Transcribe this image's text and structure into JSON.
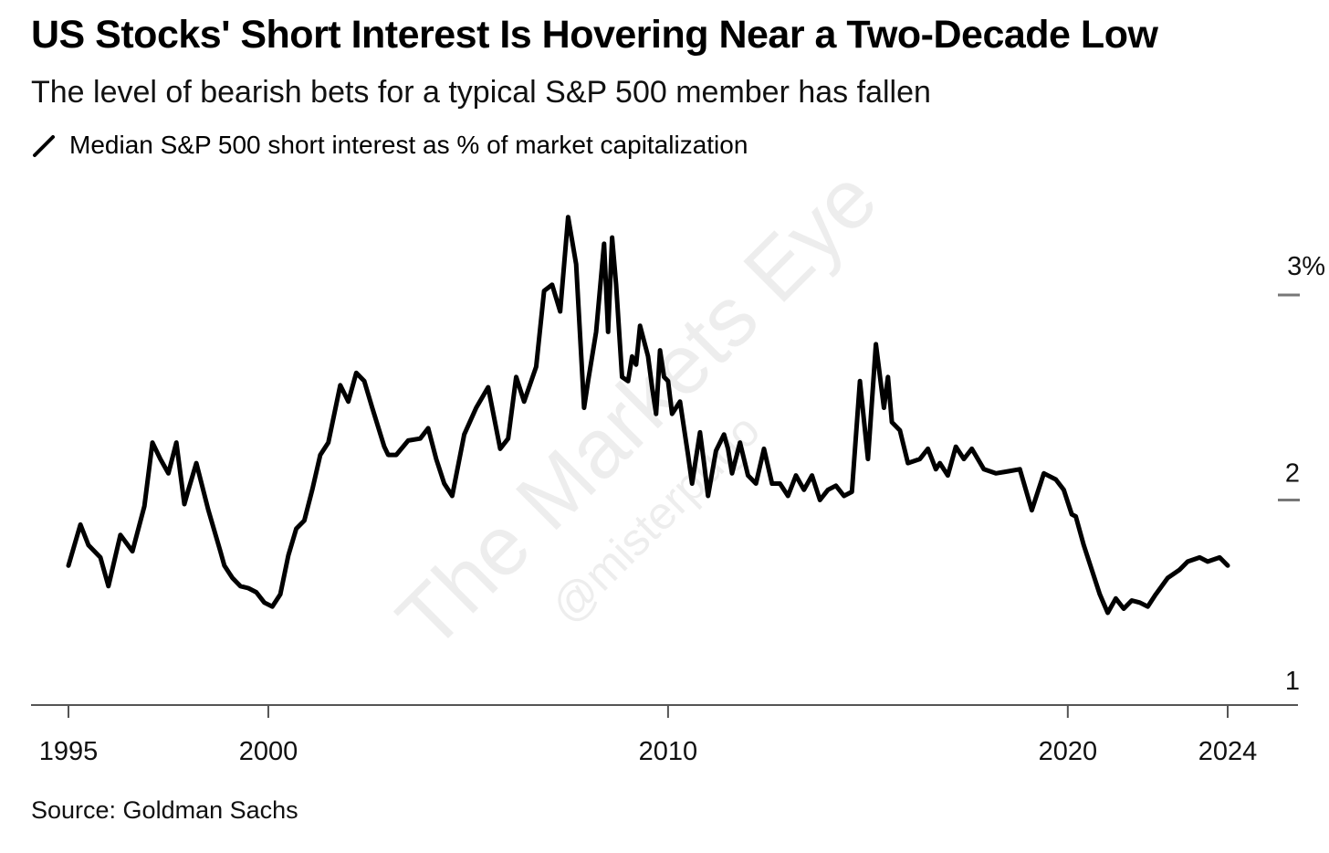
{
  "header": {
    "title": "US Stocks' Short Interest Is Hovering Near a Two-Decade Low",
    "subtitle": "The level of bearish bets for a typical S&P 500 member has fallen"
  },
  "legend": {
    "label": "Median S&P 500 short interest as % of market capitalization",
    "color": "#000000"
  },
  "watermark": {
    "line1": "The Markets Eye",
    "line2": "@misterpugo"
  },
  "footer": {
    "source": "Source: Goldman Sachs"
  },
  "chart_data": {
    "type": "line",
    "title": "US Stocks' Short Interest Is Hovering Near a Two-Decade Low",
    "subtitle": "The level of bearish bets for a typical S&P 500 member has fallen",
    "xlabel": "",
    "ylabel": "",
    "xlim": [
      1995,
      2026
    ],
    "ylim": [
      1,
      3.5
    ],
    "x_ticks": [
      {
        "value": 1995,
        "label": "1995"
      },
      {
        "value": 2000,
        "label": "2000"
      },
      {
        "value": 2010,
        "label": "2010"
      },
      {
        "value": 2020,
        "label": "2020"
      },
      {
        "value": 2024,
        "label": "2024"
      }
    ],
    "y_ticks": [
      {
        "value": 1,
        "label": "1"
      },
      {
        "value": 2,
        "label": "2"
      },
      {
        "value": 3,
        "label": "3%"
      }
    ],
    "grid": false,
    "legend_position": "top-left",
    "series": [
      {
        "name": "Median S&P 500 short interest as % of market capitalization",
        "color": "#000000",
        "x": [
          1995.0,
          1995.3,
          1995.5,
          1995.8,
          1996.0,
          1996.3,
          1996.6,
          1996.9,
          1997.1,
          1997.3,
          1997.5,
          1997.7,
          1997.9,
          1998.0,
          1998.2,
          1998.5,
          1998.8,
          1998.9,
          1999.1,
          1999.3,
          1999.5,
          1999.7,
          1999.9,
          2000.1,
          2000.3,
          2000.5,
          2000.7,
          2000.9,
          2001.1,
          2001.3,
          2001.5,
          2001.8,
          2002.0,
          2002.2,
          2002.4,
          2002.6,
          2002.9,
          2003.0,
          2003.2,
          2003.5,
          2003.8,
          2004.0,
          2004.2,
          2004.4,
          2004.6,
          2004.9,
          2005.2,
          2005.5,
          2005.8,
          2006.0,
          2006.2,
          2006.4,
          2006.7,
          2006.9,
          2007.1,
          2007.3,
          2007.5,
          2007.7,
          2007.9,
          2008.0,
          2008.2,
          2008.4,
          2008.5,
          2008.6,
          2008.7,
          2008.85,
          2009.0,
          2009.1,
          2009.2,
          2009.3,
          2009.5,
          2009.6,
          2009.7,
          2009.8,
          2009.9,
          2010.0,
          2010.1,
          2010.3,
          2010.5,
          2010.6,
          2010.8,
          2010.9,
          2011.0,
          2011.2,
          2011.4,
          2011.5,
          2011.6,
          2011.8,
          2012.0,
          2012.2,
          2012.4,
          2012.6,
          2012.8,
          2013.0,
          2013.2,
          2013.4,
          2013.6,
          2013.8,
          2014.0,
          2014.2,
          2014.4,
          2014.6,
          2014.8,
          2015.0,
          2015.2,
          2015.4,
          2015.5,
          2015.6,
          2015.8,
          2016.0,
          2016.3,
          2016.5,
          2016.7,
          2016.8,
          2017.0,
          2017.2,
          2017.4,
          2017.6,
          2017.9,
          2018.2,
          2018.5,
          2018.8,
          2019.1,
          2019.4,
          2019.7,
          2019.9,
          2020.1,
          2020.2,
          2020.4,
          2020.5,
          2020.8,
          2021.0,
          2021.2,
          2021.4,
          2021.6,
          2021.8,
          2022.0,
          2022.2,
          2022.5,
          2022.8,
          2023.0,
          2023.3,
          2023.5,
          2023.8,
          2024.0
        ],
        "y": [
          1.68,
          1.88,
          1.78,
          1.72,
          1.58,
          1.83,
          1.75,
          1.97,
          2.28,
          2.2,
          2.13,
          2.28,
          1.98,
          2.05,
          2.18,
          1.95,
          1.75,
          1.68,
          1.62,
          1.58,
          1.57,
          1.55,
          1.5,
          1.48,
          1.54,
          1.73,
          1.86,
          1.9,
          2.05,
          2.22,
          2.28,
          2.56,
          2.48,
          2.62,
          2.58,
          2.45,
          2.26,
          2.22,
          2.22,
          2.29,
          2.3,
          2.35,
          2.2,
          2.08,
          2.02,
          2.32,
          2.45,
          2.55,
          2.25,
          2.3,
          2.6,
          2.48,
          2.65,
          3.02,
          3.05,
          2.92,
          3.38,
          3.15,
          2.45,
          2.58,
          2.82,
          3.25,
          2.82,
          3.28,
          3.05,
          2.6,
          2.58,
          2.7,
          2.66,
          2.85,
          2.7,
          2.55,
          2.42,
          2.73,
          2.6,
          2.58,
          2.42,
          2.48,
          2.22,
          2.08,
          2.33,
          2.18,
          2.02,
          2.24,
          2.32,
          2.25,
          2.13,
          2.28,
          2.12,
          2.08,
          2.25,
          2.08,
          2.08,
          2.02,
          2.12,
          2.05,
          2.12,
          2.0,
          2.05,
          2.07,
          2.02,
          2.04,
          2.58,
          2.2,
          2.76,
          2.45,
          2.6,
          2.38,
          2.34,
          2.18,
          2.2,
          2.25,
          2.15,
          2.18,
          2.12,
          2.26,
          2.2,
          2.25,
          2.15,
          2.13,
          2.14,
          2.15,
          1.95,
          2.13,
          2.1,
          2.05,
          1.93,
          1.92,
          1.78,
          1.72,
          1.54,
          1.45,
          1.52,
          1.47,
          1.51,
          1.5,
          1.48,
          1.54,
          1.62,
          1.66,
          1.7,
          1.72,
          1.7,
          1.72,
          1.68
        ]
      }
    ]
  }
}
